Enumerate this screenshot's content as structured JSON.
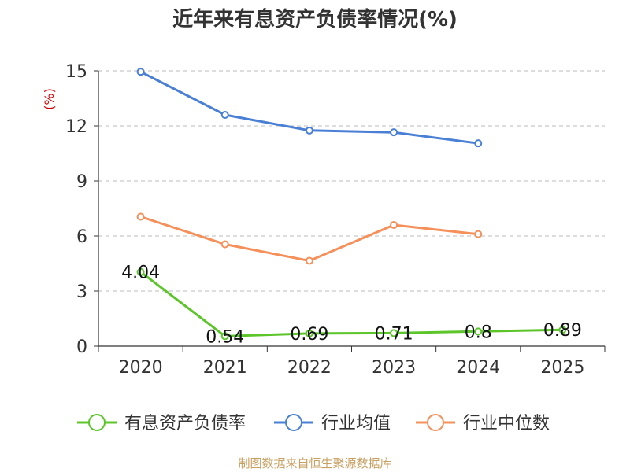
{
  "chart_data": {
    "type": "line",
    "title": "近年来有息资产负债率情况(%)",
    "ylabel": "(%)",
    "ylabel_color": "#cc0000",
    "categories": [
      "2020",
      "2021",
      "2022",
      "2023",
      "2024",
      "2025"
    ],
    "ylim": [
      0,
      15
    ],
    "yticks": [
      "0",
      "3",
      "6",
      "9",
      "12",
      "15"
    ],
    "grid": true,
    "legend_position": "bottom",
    "series": [
      {
        "name": "有息资产负债率",
        "color": "#5cc52a",
        "values": [
          4.04,
          0.54,
          0.69,
          0.71,
          0.8,
          0.89
        ],
        "labels": [
          "4.04",
          "0.54",
          "0.69",
          "0.71",
          "0.8",
          "0.89"
        ]
      },
      {
        "name": "行业均值",
        "color": "#4a7fd6",
        "values": [
          14.95,
          12.6,
          11.75,
          11.65,
          11.05,
          null
        ]
      },
      {
        "name": "行业中位数",
        "color": "#f5905a",
        "values": [
          7.05,
          5.55,
          4.65,
          6.6,
          6.1,
          null
        ]
      }
    ]
  },
  "source": "制图数据来自恒生聚源数据库"
}
